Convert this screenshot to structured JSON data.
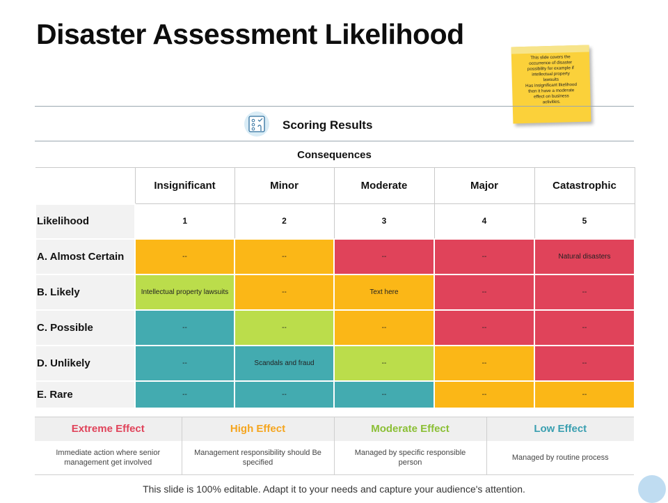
{
  "title": "Disaster Assessment Likelihood",
  "sticky_note": [
    "This slide covers  the",
    "occurrence  of  disaster",
    "possibility  for example  if",
    "intellectual  property",
    "lawsuits",
    "Has insignificant  likelihood",
    "then  it have  a moderate",
    "effect  on business",
    "activities."
  ],
  "scoring": {
    "icon": "rating-icon",
    "label": "Scoring Results"
  },
  "consequences_label": "Consequences",
  "columns": [
    "Insignificant",
    "Minor",
    "Moderate",
    "Major",
    "Catastrophic"
  ],
  "likelihood_label": "Likelihood",
  "numbers": [
    "1",
    "2",
    "3",
    "4",
    "5"
  ],
  "rows": [
    {
      "label": "A. Almost Certain",
      "cells": [
        {
          "text": "--",
          "level": "high"
        },
        {
          "text": "--",
          "level": "high"
        },
        {
          "text": "--",
          "level": "extreme"
        },
        {
          "text": "--",
          "level": "extreme"
        },
        {
          "text": "Natural disasters",
          "level": "extreme"
        }
      ]
    },
    {
      "label": "B. Likely",
      "cells": [
        {
          "text": "Intellectual property lawsuits",
          "level": "moderate"
        },
        {
          "text": "--",
          "level": "high"
        },
        {
          "text": "Text here",
          "level": "high"
        },
        {
          "text": "--",
          "level": "extreme"
        },
        {
          "text": "--",
          "level": "extreme"
        }
      ]
    },
    {
      "label": "C. Possible",
      "cells": [
        {
          "text": "--",
          "level": "low"
        },
        {
          "text": "--",
          "level": "moderate"
        },
        {
          "text": "--",
          "level": "high"
        },
        {
          "text": "--",
          "level": "extreme"
        },
        {
          "text": "--",
          "level": "extreme"
        }
      ]
    },
    {
      "label": "D. Unlikely",
      "cells": [
        {
          "text": "--",
          "level": "low"
        },
        {
          "text": "Scandals and fraud",
          "level": "low"
        },
        {
          "text": "--",
          "level": "moderate"
        },
        {
          "text": "--",
          "level": "high"
        },
        {
          "text": "--",
          "level": "extreme"
        }
      ]
    },
    {
      "label": "E. Rare",
      "cells": [
        {
          "text": "--",
          "level": "low"
        },
        {
          "text": "--",
          "level": "low"
        },
        {
          "text": "--",
          "level": "low"
        },
        {
          "text": "--",
          "level": "high"
        },
        {
          "text": "--",
          "level": "high"
        }
      ]
    }
  ],
  "colors": {
    "extreme": "#e0435a",
    "high": "#fbb717",
    "moderate": "#bbdd4b",
    "low": "#43abb0"
  },
  "legend": [
    {
      "key": "extreme",
      "title": "Extreme Effect",
      "desc": "Immediate action where senior management get involved",
      "color": "#e0435a"
    },
    {
      "key": "high",
      "title": "High Effect",
      "desc": "Management responsibility should Be specified",
      "color": "#f5a51e"
    },
    {
      "key": "moderate",
      "title": "Moderate Effect",
      "desc": "Managed by specific responsible person",
      "color": "#8bbf35"
    },
    {
      "key": "low",
      "title": "Low Effect",
      "desc": "Managed by routine process",
      "color": "#3a9fb0"
    }
  ],
  "footer": "This slide is 100% editable. Adapt it to your needs and capture your audience's attention."
}
